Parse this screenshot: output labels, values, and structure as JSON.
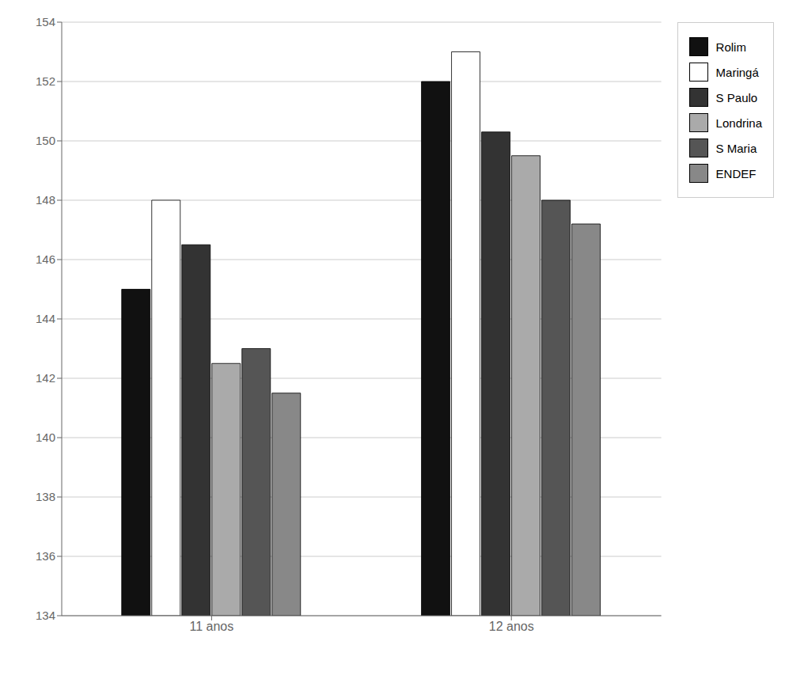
{
  "chart_data": {
    "type": "bar",
    "categories": [
      "11 anos",
      "12 anos"
    ],
    "series": [
      {
        "name": "Rolim",
        "color": "#111111",
        "values": [
          145.0,
          152.0
        ]
      },
      {
        "name": "Maringá",
        "color": "#ffffff",
        "values": [
          148.0,
          153.0
        ]
      },
      {
        "name": "S Paulo",
        "color": "#333333",
        "values": [
          146.5,
          150.3
        ]
      },
      {
        "name": "Londrina",
        "color": "#aaaaaa",
        "values": [
          142.5,
          149.5
        ]
      },
      {
        "name": "S Maria",
        "color": "#555555",
        "values": [
          143.0,
          148.0
        ]
      },
      {
        "name": "ENDEF",
        "color": "#888888",
        "values": [
          141.5,
          147.2
        ]
      }
    ],
    "ylim": [
      134,
      154
    ],
    "yticks": [
      134,
      136,
      138,
      140,
      142,
      144,
      146,
      148,
      150,
      152,
      154
    ],
    "grid": true,
    "legend": "upper right"
  }
}
